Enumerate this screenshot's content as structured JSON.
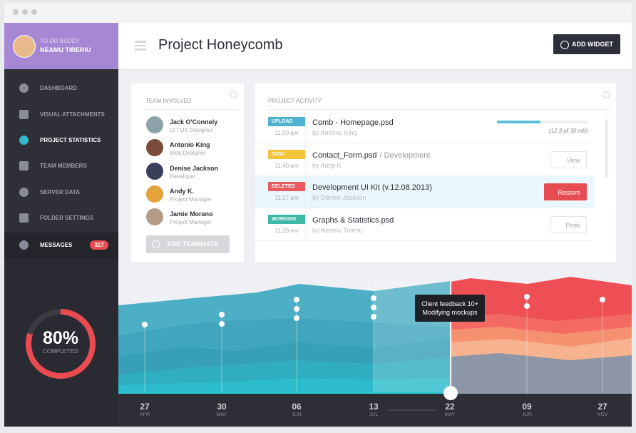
{
  "sidebar": {
    "user": {
      "role": "TO-DO BUDDY",
      "name": "NEAMU TIBERIU"
    },
    "menu": [
      {
        "label": "DASHBOARD"
      },
      {
        "label": "VISUAL ATTACHMENTS"
      },
      {
        "label": "PROJECT STATISTICS"
      },
      {
        "label": "TEAM MEMBERS"
      },
      {
        "label": "SERVER DATA"
      },
      {
        "label": "FOLDER SETTINGS"
      },
      {
        "label": "MESSAGES",
        "badge": "327"
      }
    ],
    "progress": {
      "value": "80%",
      "label": "COMPLETED"
    }
  },
  "header": {
    "title": "Project Honeycomb",
    "button": "ADD WIDGET"
  },
  "team": {
    "title": "TEAM INVOLVED",
    "members": [
      {
        "name": "Jack O'Connely",
        "role": "UI / UX Designer"
      },
      {
        "name": "Antonio King",
        "role": "Web Designer"
      },
      {
        "name": "Denise Jackson",
        "role": "Developer"
      },
      {
        "name": "Andy K.",
        "role": "Project Manager"
      },
      {
        "name": "Jamie Morano",
        "role": "Project Manager"
      }
    ],
    "button": "ADD TEAMMATE"
  },
  "activity": {
    "title": "PROJECT ACTIVITY",
    "items": [
      {
        "tag": "UPLOAD",
        "time": "11:50 am",
        "file": "Comb - Homepage.psd",
        "by": "by Antonio King",
        "meta": "(12.3 of 30 mb)"
      },
      {
        "tag": "TASK",
        "time": "11:40 am",
        "file": "Contact_Form.psd",
        "folder": "/ Development",
        "by": "by Andy K",
        "action": "View"
      },
      {
        "tag": "DELETED",
        "time": "11:27 am",
        "file": "Development UI Kit (v.12.08.2013)",
        "by": "by Denise Jackson",
        "action": "Restore"
      },
      {
        "tag": "WORKING",
        "time": "11:20 am",
        "file": "Graphs & Statistics.psd",
        "by": "by Neamu Tiberiu",
        "action": "Peek"
      }
    ]
  },
  "timeline": {
    "tooltip": [
      "Client feedback 10+",
      "Modifying mockups"
    ],
    "dates": [
      {
        "day": "27",
        "month": "APR"
      },
      {
        "day": "30",
        "month": "MAY"
      },
      {
        "day": "06",
        "month": "JUN"
      },
      {
        "day": "13",
        "month": "JUL"
      },
      {
        "day": "22",
        "month": "MAY"
      },
      {
        "day": "09",
        "month": "JUN"
      },
      {
        "day": "27",
        "month": "NOV"
      }
    ]
  }
}
